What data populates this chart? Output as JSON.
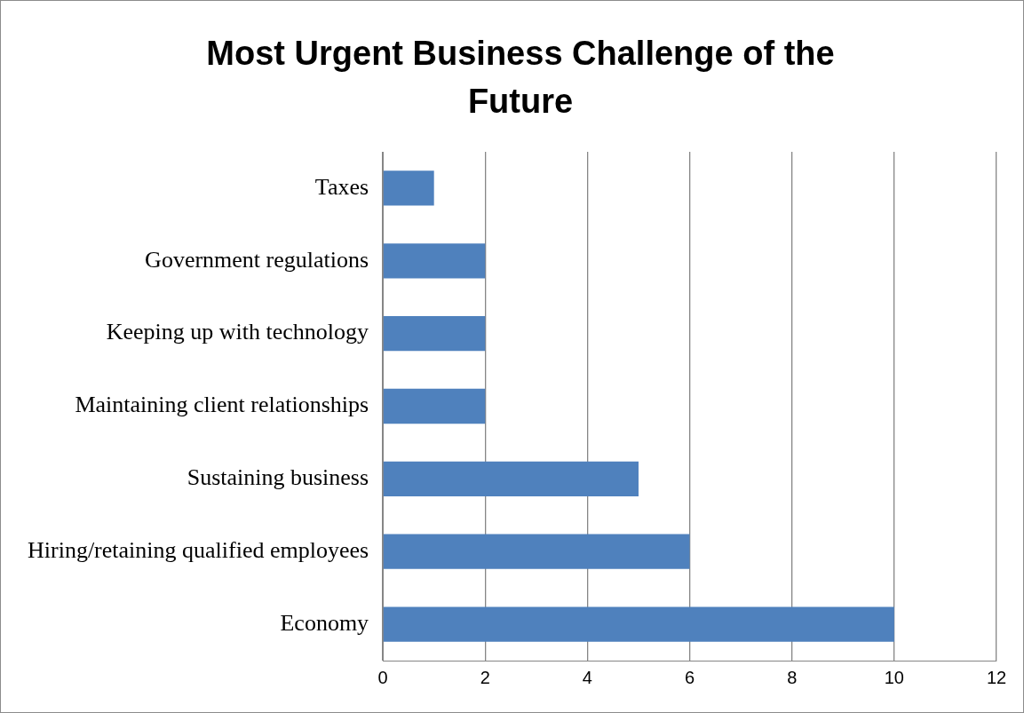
{
  "chart_data": {
    "type": "bar",
    "orientation": "horizontal",
    "title": "Most Urgent Business Challenge of the Future",
    "categories": [
      "Taxes",
      "Government regulations",
      "Keeping up with technology",
      "Maintaining client relationships",
      "Sustaining business",
      "Hiring/retaining qualified employees",
      "Economy"
    ],
    "values": [
      1,
      2,
      2,
      2,
      5,
      6,
      10
    ],
    "color": "#4f81bd",
    "xlim": [
      0,
      12
    ],
    "xticks": [
      0,
      2,
      4,
      6,
      8,
      10,
      12
    ],
    "grid": "x",
    "legend": false
  }
}
